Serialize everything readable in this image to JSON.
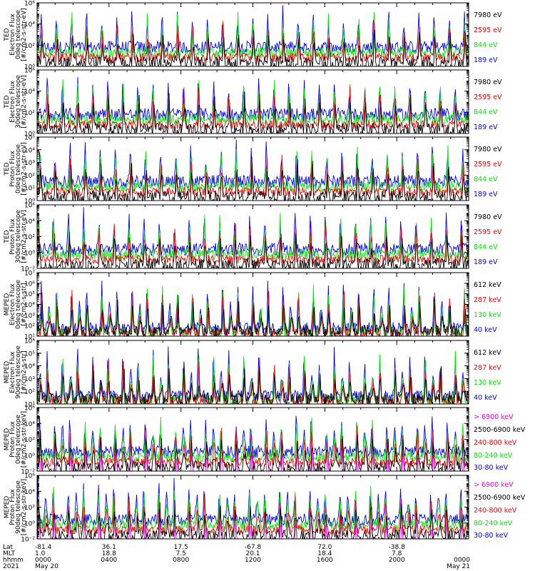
{
  "colors": {
    "black": "#000000",
    "red": "#ff0000",
    "green": "#00ee00",
    "blue": "#0000ff",
    "magenta": "#ff00ff"
  },
  "chart_data": [
    {
      "type": "line",
      "ylabel": [
        "TED",
        "Electron Flux",
        "0deg telescope",
        "[#/cm2-s-str-eV]"
      ],
      "ylog": true,
      "ylim": [
        1,
        1000000
      ],
      "yticks": [
        {
          "v": 1,
          "label": "10⁰"
        },
        {
          "v": 100,
          "label": "10²"
        },
        {
          "v": 10000,
          "label": "10⁴"
        },
        {
          "v": 1000000,
          "label": "10⁶"
        }
      ],
      "series": [
        {
          "name": "7980 eV",
          "color": "black"
        },
        {
          "name": "2595 eV",
          "color": "red"
        },
        {
          "name": "844 eV",
          "color": "green"
        },
        {
          "name": "189 eV",
          "color": "blue"
        }
      ]
    },
    {
      "type": "line",
      "ylabel": [
        "TED",
        "Electron Flux",
        "30deg telescope",
        "[#/cm2-s-str-eV]"
      ],
      "ylog": true,
      "ylim": [
        1,
        1000000
      ],
      "yticks": [
        {
          "v": 1,
          "label": "10⁰"
        },
        {
          "v": 100,
          "label": "10²"
        },
        {
          "v": 10000,
          "label": "10⁴"
        },
        {
          "v": 1000000,
          "label": "10⁶"
        }
      ],
      "series": [
        {
          "name": "7980 eV",
          "color": "black"
        },
        {
          "name": "2595 eV",
          "color": "red"
        },
        {
          "name": "844 eV",
          "color": "green"
        },
        {
          "name": "189 eV",
          "color": "blue"
        }
      ]
    },
    {
      "type": "line",
      "ylabel": [
        "TED",
        "Proton Flux",
        "0deg telescope",
        "[#/cm2-s-str-eV]"
      ],
      "ylog": true,
      "ylim": [
        1,
        100000
      ],
      "yticks": [
        {
          "v": 1,
          "label": "10⁰"
        },
        {
          "v": 10,
          "label": "10¹"
        },
        {
          "v": 100,
          "label": "10²"
        },
        {
          "v": 1000,
          "label": "10³"
        },
        {
          "v": 10000,
          "label": "10⁴"
        },
        {
          "v": 100000,
          "label": "10⁵"
        }
      ],
      "series": [
        {
          "name": "7980 eV",
          "color": "black"
        },
        {
          "name": "2595 eV",
          "color": "red"
        },
        {
          "name": "844 eV",
          "color": "green"
        },
        {
          "name": "189 eV",
          "color": "blue"
        }
      ]
    },
    {
      "type": "line",
      "ylabel": [
        "TED",
        "Proton Flux",
        "30deg telescope",
        "[#/cm2-s-str-eV]"
      ],
      "ylog": true,
      "ylim": [
        0.01,
        1000000
      ],
      "yticks": [
        {
          "v": 0.01,
          "label": "10⁻²"
        },
        {
          "v": 1,
          "label": "10⁰"
        },
        {
          "v": 100,
          "label": "10²"
        },
        {
          "v": 10000,
          "label": "10⁴"
        },
        {
          "v": 1000000,
          "label": "10⁶"
        }
      ],
      "series": [
        {
          "name": "7980 eV",
          "color": "black"
        },
        {
          "name": "2595 eV",
          "color": "red"
        },
        {
          "name": "844 eV",
          "color": "green"
        },
        {
          "name": "189 eV",
          "color": "blue"
        }
      ]
    },
    {
      "type": "line",
      "ylabel": [
        "MEPED",
        "Electron Flux",
        "0deg telescope",
        "[#/cm2-s-str]"
      ],
      "ylog": true,
      "ylim": [
        10,
        10000000
      ],
      "yticks": [
        {
          "v": 10,
          "label": "10¹"
        },
        {
          "v": 100,
          "label": "10²"
        },
        {
          "v": 1000,
          "label": "10³"
        },
        {
          "v": 10000,
          "label": "10⁴"
        },
        {
          "v": 100000,
          "label": "10⁵"
        },
        {
          "v": 1000000,
          "label": "10⁶"
        },
        {
          "v": 10000000,
          "label": "10⁷"
        }
      ],
      "series": [
        {
          "name": "612 keV",
          "color": "black"
        },
        {
          "name": "287 keV",
          "color": "red"
        },
        {
          "name": "130 keV",
          "color": "green"
        },
        {
          "name": "40 keV",
          "color": "blue"
        }
      ]
    },
    {
      "type": "line",
      "ylabel": [
        "MEPED",
        "Electron Flux",
        "90deg telescope",
        "[#/cm2-s-str]"
      ],
      "ylog": true,
      "ylim": [
        10,
        1000000
      ],
      "yticks": [
        {
          "v": 10,
          "label": "10¹"
        },
        {
          "v": 100,
          "label": "10²"
        },
        {
          "v": 1000,
          "label": "10³"
        },
        {
          "v": 10000,
          "label": "10⁴"
        },
        {
          "v": 100000,
          "label": "10⁵"
        },
        {
          "v": 1000000,
          "label": "10⁶"
        }
      ],
      "series": [
        {
          "name": "612 keV",
          "color": "black"
        },
        {
          "name": "287 keV",
          "color": "red"
        },
        {
          "name": "130 keV",
          "color": "green"
        },
        {
          "name": "40 keV",
          "color": "blue"
        }
      ]
    },
    {
      "type": "line",
      "ylabel": [
        "MEPED",
        "Proton Flux",
        "0deg telescope",
        "[#/cm2-s-str-keV]"
      ],
      "ylog": true,
      "ylim": [
        0.01,
        1000000
      ],
      "yticks": [
        {
          "v": 0.01,
          "label": "10⁻²"
        },
        {
          "v": 1,
          "label": "10⁰"
        },
        {
          "v": 100,
          "label": "10²"
        },
        {
          "v": 10000,
          "label": "10⁴"
        },
        {
          "v": 1000000,
          "label": "10⁶"
        }
      ],
      "series": [
        {
          "name": "> 6900 keV",
          "color": "magenta"
        },
        {
          "name": "2500-6900 keV",
          "color": "black"
        },
        {
          "name": "240-800 keV",
          "color": "red"
        },
        {
          "name": "80-240 keV",
          "color": "green"
        },
        {
          "name": "30-80 keV",
          "color": "blue"
        }
      ]
    },
    {
      "type": "line",
      "ylabel": [
        "MEPED",
        "Proton Flux",
        "90deg telescope",
        "[#/cm2-s-str-keV]"
      ],
      "ylog": true,
      "ylim": [
        0.01,
        1000000
      ],
      "yticks": [
        {
          "v": 0.01,
          "label": "10⁻²"
        },
        {
          "v": 1,
          "label": "10⁰"
        },
        {
          "v": 100,
          "label": "10²"
        },
        {
          "v": 10000,
          "label": "10⁴"
        },
        {
          "v": 1000000,
          "label": "10⁶"
        }
      ],
      "series": [
        {
          "name": "> 6900 keV",
          "color": "magenta"
        },
        {
          "name": "2500-6900 keV",
          "color": "black"
        },
        {
          "name": "240-800 keV",
          "color": "red"
        },
        {
          "name": "80-240 keV",
          "color": "green"
        },
        {
          "name": "30-80 keV",
          "color": "blue"
        }
      ]
    }
  ],
  "x_axis": {
    "row_labels": [
      "Lat",
      "MLT",
      "hhmm",
      "2021"
    ],
    "xlim_hours": [
      0,
      24
    ],
    "ticks": [
      {
        "hour": 0,
        "rows": [
          "-81.4",
          "1.0",
          "0000",
          "May 20"
        ]
      },
      {
        "hour": 4,
        "rows": [
          "36.1",
          "18.8",
          "0400",
          ""
        ]
      },
      {
        "hour": 8,
        "rows": [
          "17.5",
          "7.5",
          "0800",
          ""
        ]
      },
      {
        "hour": 12,
        "rows": [
          "-67.8",
          "20.1",
          "1200",
          ""
        ]
      },
      {
        "hour": 16,
        "rows": [
          "72.0",
          "18.4",
          "1600",
          ""
        ]
      },
      {
        "hour": 20,
        "rows": [
          "-38.8",
          "7.8",
          "2000",
          ""
        ]
      },
      {
        "hour": 24,
        "rows": [
          "",
          "",
          "0000",
          "May 21"
        ]
      }
    ]
  }
}
